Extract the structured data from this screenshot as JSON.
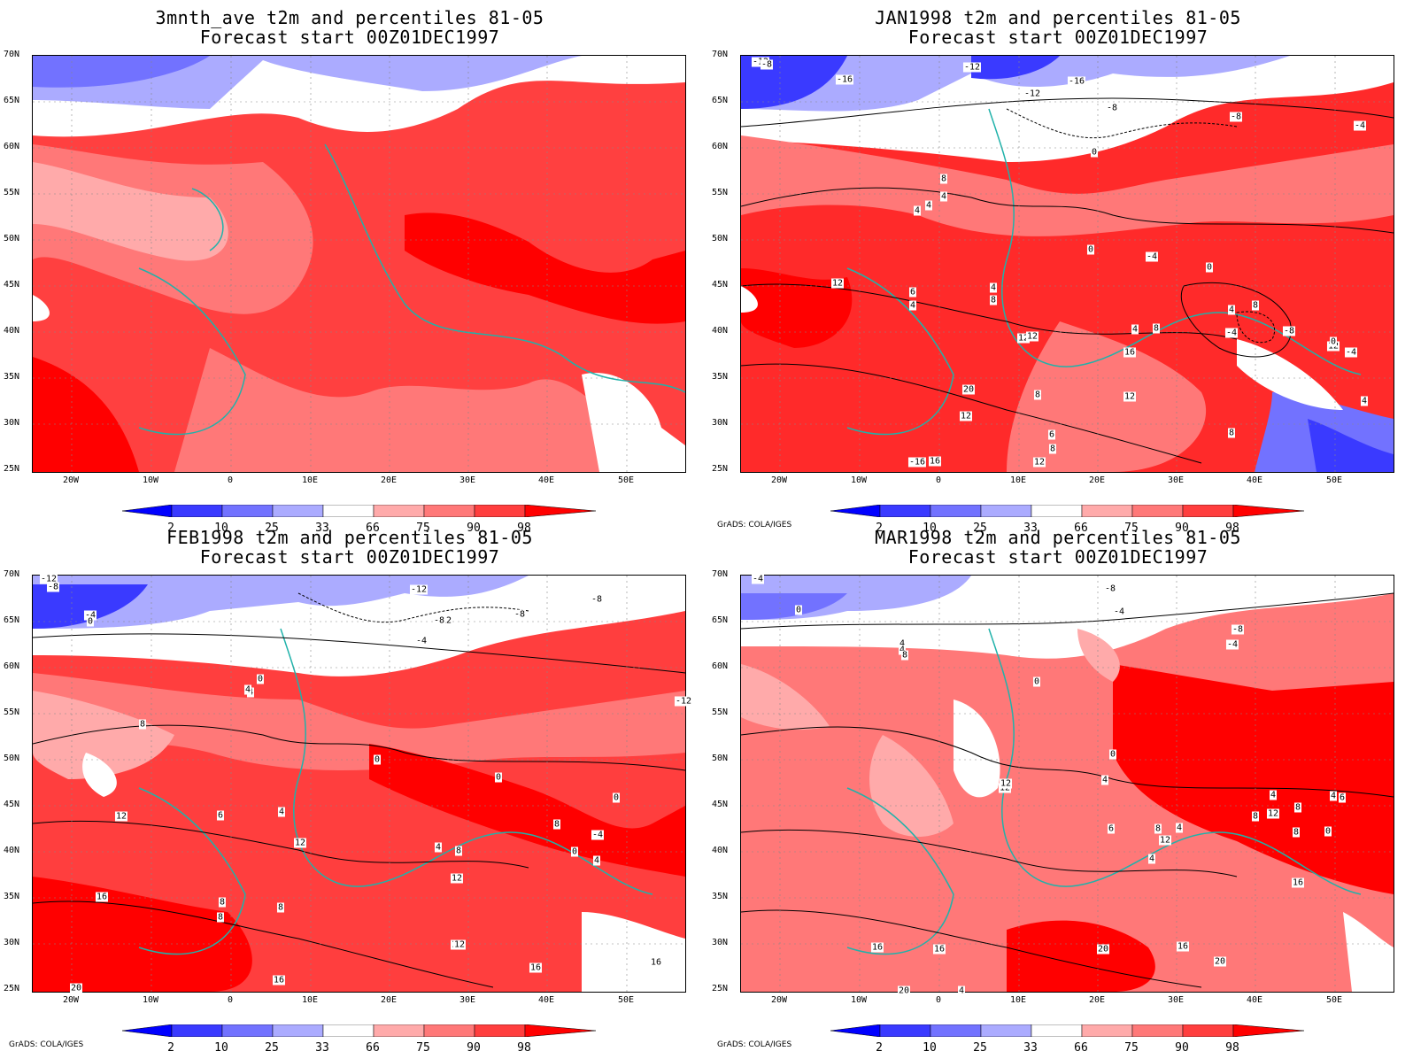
{
  "panels": [
    {
      "title_line1": "3mnth_ave t2m and percentiles 81-05",
      "title_line2": "Forecast start 00Z01DEC1997",
      "credit": "",
      "contour_labels": []
    },
    {
      "title_line1": "JAN1998 t2m and percentiles 81-05",
      "title_line2": "Forecast start 00Z01DEC1997",
      "credit": "GrADS: COLA/IGES",
      "contour_labels": [
        "-12",
        "-8",
        "-16",
        "-12",
        "-16",
        "-12",
        "-8",
        "-8",
        "-4",
        "0",
        "4",
        "8",
        "4",
        "4",
        "0",
        "-4",
        "0",
        "12",
        "6",
        "4",
        "4",
        "8",
        "4",
        "8",
        "12",
        "12",
        "4",
        "8",
        "-4",
        "-8",
        "12",
        "16",
        "8",
        "6",
        "8",
        "12",
        "12",
        "20",
        "12",
        "16",
        "-16",
        "8",
        "-4",
        "0",
        "4"
      ]
    },
    {
      "title_line1": "FEB1998 t2m and percentiles 81-05",
      "title_line2": "Forecast start 00Z01DEC1997",
      "credit": "GrADS: COLA/IGES",
      "contour_labels": [
        "-12",
        "-8",
        "-4",
        "0",
        "-12",
        "-8",
        "-12",
        "-8",
        "-8",
        "-4",
        "4",
        "0",
        "4",
        "8",
        "0",
        "0",
        "0",
        "12",
        "6",
        "4",
        "12",
        "4",
        "8",
        "8",
        "-4",
        "0",
        "4",
        "12",
        "16",
        "8",
        "8",
        "12",
        "16",
        "12",
        "16",
        "20",
        "16",
        "8",
        "-12"
      ]
    },
    {
      "title_line1": "MAR1998 t2m and percentiles 81-05",
      "title_line2": "Forecast start 00Z01DEC1997",
      "credit": "GrADS: COLA/IGES",
      "contour_labels": [
        "-4",
        "0",
        "-8",
        "-4",
        "-8",
        "-4",
        "4",
        "4",
        "8",
        "0",
        "0",
        "4",
        "8",
        "6",
        "12",
        "12",
        "4",
        "8",
        "12",
        "4",
        "8",
        "6",
        "8",
        "4",
        "0",
        "4",
        "12",
        "16",
        "16",
        "16",
        "20",
        "16",
        "20",
        "20",
        "4"
      ]
    }
  ],
  "axes": {
    "lat_labels": [
      "70N",
      "65N",
      "60N",
      "55N",
      "50N",
      "45N",
      "40N",
      "35N",
      "30N",
      "25N"
    ],
    "lon_labels": [
      "20W",
      "10W",
      "0",
      "10E",
      "20E",
      "30E",
      "40E",
      "50E"
    ]
  },
  "colorbar": {
    "labels": [
      "2",
      "10",
      "25",
      "33",
      "66",
      "75",
      "90",
      "98"
    ],
    "colors": [
      "#0000ff",
      "#3a3aff",
      "#7272ff",
      "#ababff",
      "#ffffff",
      "#ffaaaa",
      "#ff7878",
      "#ff3e3e",
      "#ff0000"
    ]
  }
}
